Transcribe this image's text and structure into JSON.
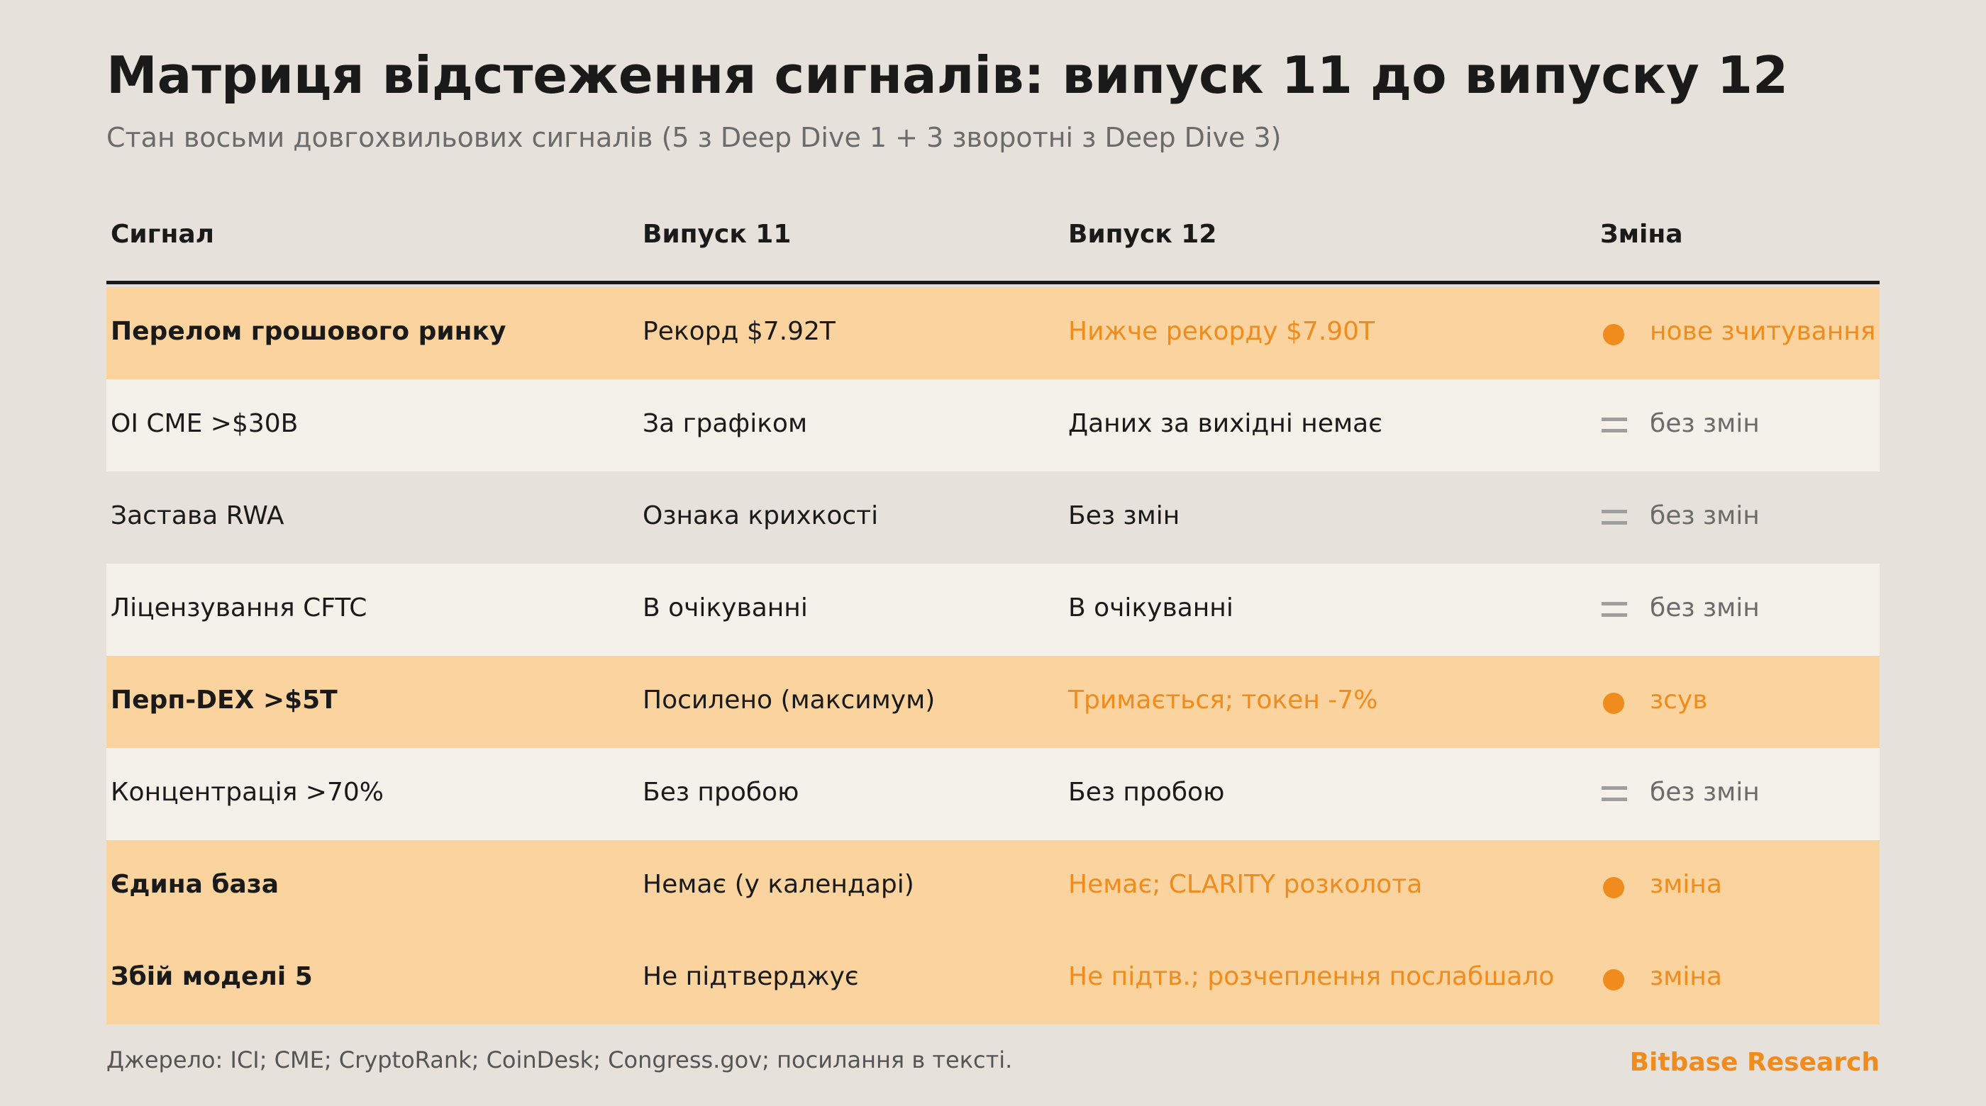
{
  "header": {
    "title": "Матриця відстеження сигналів: випуск 11 до випуску 12",
    "subtitle": "Стан восьми довгохвильових сигналів (5 з Deep Dive 1 + 3 зворотні з Deep Dive 3)"
  },
  "table": {
    "columns": [
      "Сигнал",
      "Випуск 11",
      "Випуск 12",
      "Зміна"
    ],
    "rows": [
      {
        "signal": "Перелом грошового ринку",
        "issue11": "Рекорд $7.92T",
        "issue12": "Нижче рекорду $7.90T",
        "change": "нове зчитування",
        "status": "changed"
      },
      {
        "signal": "OI CME >$30B",
        "issue11": "За графіком",
        "issue12": "Даних за вихідні немає",
        "change": "без змін",
        "status": "unchanged"
      },
      {
        "signal": "Застава RWA",
        "issue11": "Ознака крихкості",
        "issue12": "Без змін",
        "change": "без змін",
        "status": "unchanged"
      },
      {
        "signal": "Ліцензування CFTC",
        "issue11": "В очікуванні",
        "issue12": "В очікуванні",
        "change": "без змін",
        "status": "unchanged"
      },
      {
        "signal": "Перп-DEX >$5T",
        "issue11": "Посилено (максимум)",
        "issue12": "Тримається; токен -7%",
        "change": "зсув",
        "status": "changed"
      },
      {
        "signal": "Концентрація >70%",
        "issue11": "Без пробою",
        "issue12": "Без пробою",
        "change": "без змін",
        "status": "unchanged"
      },
      {
        "signal": "Єдина база",
        "issue11": "Немає (у календарі)",
        "issue12": "Немає; CLARITY розколота",
        "change": "зміна",
        "status": "changed"
      },
      {
        "signal": "Збій моделі 5",
        "issue11": "Не підтверджує",
        "issue12": "Не підтв.; розчеплення послабшало",
        "change": "зміна",
        "status": "changed"
      }
    ]
  },
  "footer": {
    "source": "Джерело: ICI; CME; CryptoRank; CoinDesk; Congress.gov; посилання в тексті.",
    "brand": "Bitbase Research"
  },
  "colors": {
    "background": "#e6e1db",
    "highlight_row": "#fad39e",
    "light_row": "#f4f1ea",
    "accent": "#f08c1e",
    "muted": "#9e9e9e"
  },
  "icons": {
    "changed": "orange-dot-icon",
    "unchanged": "equals-icon"
  }
}
